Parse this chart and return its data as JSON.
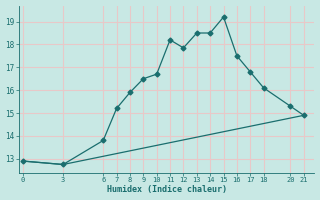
{
  "xlabel": "Humidex (Indice chaleur)",
  "background_color": "#c8e8e4",
  "grid_color": "#e8c8c8",
  "line_color": "#1a6e6e",
  "line1_x": [
    0,
    3,
    6,
    7,
    8,
    9,
    10,
    11,
    12,
    13,
    14,
    15,
    16,
    17,
    18,
    20,
    21
  ],
  "line1_y": [
    12.9,
    12.75,
    13.8,
    15.2,
    15.9,
    16.5,
    16.7,
    18.2,
    17.85,
    18.5,
    18.5,
    19.2,
    17.5,
    16.8,
    16.1,
    15.3,
    14.9
  ],
  "line2_x": [
    0,
    3,
    21
  ],
  "line2_y": [
    12.9,
    12.75,
    14.9
  ],
  "xticks": [
    0,
    3,
    6,
    7,
    8,
    9,
    10,
    11,
    12,
    13,
    14,
    15,
    16,
    17,
    18,
    20,
    21
  ],
  "yticks": [
    13,
    14,
    15,
    16,
    17,
    18,
    19
  ],
  "ylim": [
    12.4,
    19.7
  ],
  "xlim": [
    -0.3,
    21.8
  ]
}
